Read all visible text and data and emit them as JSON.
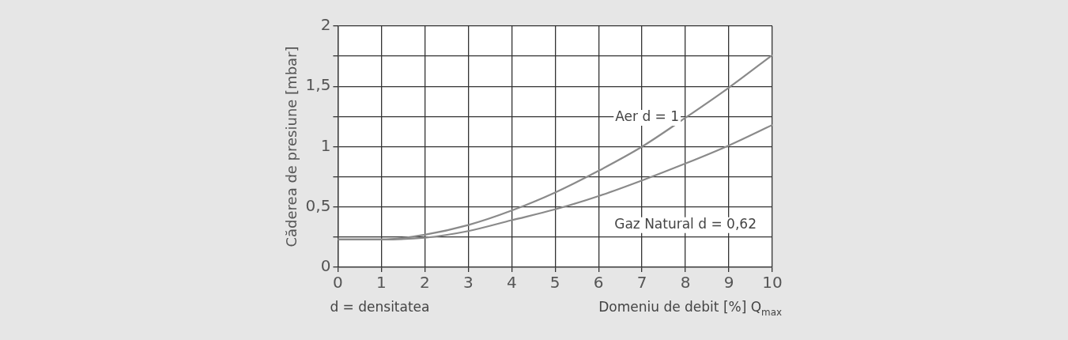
{
  "chart_data": {
    "type": "line",
    "xlabel": "Domeniu de debit [%] Q$_{max}$",
    "ylabel": "Căderea de presiune [mbar]",
    "xlim": [
      0,
      10
    ],
    "xticks": [
      0,
      1,
      2,
      3,
      4,
      5,
      6,
      7,
      8,
      9,
      10
    ],
    "ylim": [
      0,
      2
    ],
    "yticks": [
      0,
      {
        "value": 0.25,
        "label": null
      },
      {
        "value": 0.5,
        "label": "0,5"
      },
      {
        "value": 0.75,
        "label": null
      },
      1,
      {
        "value": 1.25,
        "label": null
      },
      {
        "value": 1.5,
        "label": "1,5"
      },
      {
        "value": 1.75,
        "label": null
      },
      2
    ],
    "grid": true,
    "legend": false,
    "marker": "none",
    "line_style": "solid",
    "x": [
      0,
      1,
      2,
      3,
      4,
      5,
      6,
      7,
      8,
      9,
      10
    ],
    "series": [
      {
        "name": "Aer d = 1",
        "color": "#8a8a8a",
        "values": [
          0.23,
          0.23,
          0.27,
          0.35,
          0.47,
          0.62,
          0.8,
          1.0,
          1.24,
          1.49,
          1.76
        ]
      },
      {
        "name": "Gaz Natural d = 0,62",
        "color": "#8a8a8a",
        "values": [
          0.23,
          0.23,
          0.245,
          0.3,
          0.39,
          0.48,
          0.59,
          0.72,
          0.86,
          1.01,
          1.18
        ]
      }
    ],
    "annotations": [
      "d = densitatea"
    ]
  }
}
